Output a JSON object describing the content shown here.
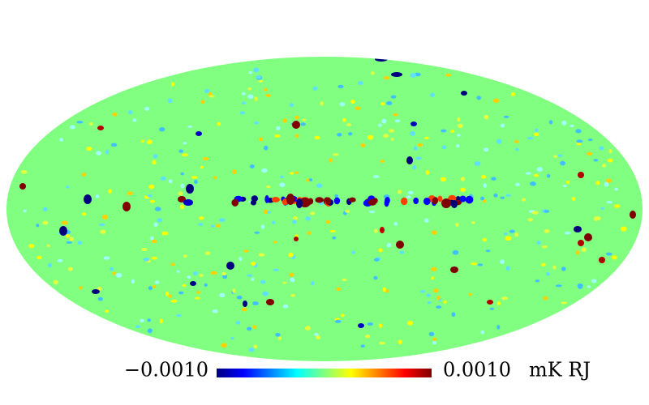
{
  "colorbar": {
    "range": [
      {
        "value": -0.001,
        "label": "−0.0010"
      },
      {
        "value": 0.001,
        "label": "0.0010"
      }
    ],
    "unit": "mK RJ"
  }
}
